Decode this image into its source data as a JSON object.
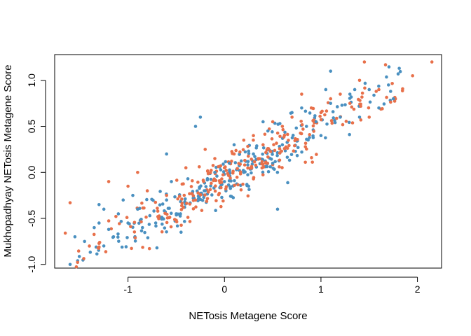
{
  "chart_data": {
    "type": "scatter",
    "title": "",
    "xlabel": "NETosis Metagene Score",
    "ylabel": "Mukhopadhyay NETosis Metagene Score",
    "xlim": [
      -1.76,
      2.25
    ],
    "ylim": [
      -1.04,
      1.28
    ],
    "xticks": [
      -1,
      0,
      1,
      2
    ],
    "xtick_labels": [
      "-1",
      "0",
      "1",
      "2"
    ],
    "yticks": [
      -1.0,
      -0.5,
      0.0,
      0.5,
      1.0
    ],
    "ytick_labels": [
      "-1.0",
      "-0.5",
      "0.0",
      "0.5",
      "1.0"
    ],
    "grid": false,
    "legend": "none",
    "series_style": [
      {
        "color": "#4a90c0",
        "approx_points": 310
      },
      {
        "color": "#e8704a",
        "approx_points": 290
      }
    ],
    "series": [
      {
        "color": "#4a90c0",
        "points": [
          [
            -1.6,
            -1.0
          ],
          [
            -1.55,
            -0.7
          ],
          [
            -1.45,
            -0.75
          ],
          [
            -1.35,
            -0.6
          ],
          [
            -1.3,
            -0.55
          ],
          [
            -1.3,
            -0.35
          ],
          [
            -1.25,
            -0.4
          ],
          [
            -1.2,
            -0.62
          ],
          [
            -1.15,
            -0.7
          ],
          [
            -1.1,
            -0.45
          ],
          [
            -1.05,
            -0.3
          ],
          [
            -1.0,
            -0.55
          ],
          [
            -0.95,
            -0.25
          ],
          [
            -0.9,
            -0.4
          ],
          [
            -0.85,
            -0.6
          ],
          [
            -0.7,
            -0.82
          ],
          [
            -0.6,
            -0.3
          ],
          [
            -0.55,
            -0.1
          ],
          [
            -0.5,
            -0.45
          ],
          [
            -0.45,
            -0.65
          ],
          [
            -0.6,
            0.2
          ],
          [
            -0.3,
            0.5
          ],
          [
            -0.25,
            0.6
          ],
          [
            -0.2,
            -0.2
          ],
          [
            -0.1,
            0.0
          ],
          [
            0.0,
            -0.1
          ],
          [
            0.05,
            0.1
          ],
          [
            0.1,
            0.3
          ],
          [
            0.2,
            0.0
          ],
          [
            0.25,
            -0.15
          ],
          [
            0.3,
            0.2
          ],
          [
            0.4,
            0.55
          ],
          [
            0.45,
            0.45
          ],
          [
            0.5,
            0.1
          ],
          [
            0.55,
            -0.4
          ],
          [
            0.6,
            0.3
          ],
          [
            0.7,
            0.65
          ],
          [
            0.8,
            0.7
          ],
          [
            0.85,
            0.5
          ],
          [
            0.95,
            0.55
          ],
          [
            1.0,
            0.4
          ],
          [
            1.05,
            0.9
          ],
          [
            1.1,
            0.75
          ],
          [
            1.1,
            1.1
          ],
          [
            1.2,
            0.6
          ],
          [
            1.3,
            0.85
          ],
          [
            1.35,
            0.9
          ],
          [
            1.4,
            0.6
          ],
          [
            1.5,
            0.9
          ],
          [
            1.6,
            0.7
          ],
          [
            1.7,
            0.95
          ],
          [
            1.75,
            0.8
          ],
          [
            1.8,
            1.07
          ]
        ]
      },
      {
        "color": "#e8704a",
        "points": [
          [
            -1.65,
            -0.66
          ],
          [
            -1.6,
            -0.33
          ],
          [
            -1.4,
            -0.8
          ],
          [
            -1.2,
            -0.1
          ],
          [
            -1.0,
            -0.15
          ],
          [
            -0.9,
            0.0
          ],
          [
            -0.8,
            -0.2
          ],
          [
            -0.6,
            -0.25
          ],
          [
            -0.5,
            -0.52
          ],
          [
            -0.4,
            0.05
          ],
          [
            -0.3,
            -0.3
          ],
          [
            -0.2,
            0.25
          ],
          [
            -0.1,
            0.15
          ],
          [
            0.0,
            0.05
          ],
          [
            0.1,
            0.2
          ],
          [
            0.2,
            0.35
          ],
          [
            0.3,
            0.4
          ],
          [
            0.4,
            0.3
          ],
          [
            0.5,
            0.55
          ],
          [
            0.6,
            0.5
          ],
          [
            0.7,
            0.6
          ],
          [
            0.8,
            0.85
          ],
          [
            0.9,
            0.7
          ],
          [
            1.0,
            0.65
          ],
          [
            1.1,
            0.8
          ],
          [
            1.2,
            0.85
          ],
          [
            1.3,
            0.75
          ],
          [
            1.4,
            1.0
          ],
          [
            1.45,
            1.2
          ],
          [
            1.5,
            0.6
          ],
          [
            1.6,
            0.9
          ],
          [
            1.95,
            1.05
          ],
          [
            2.15,
            1.2
          ]
        ]
      }
    ]
  }
}
